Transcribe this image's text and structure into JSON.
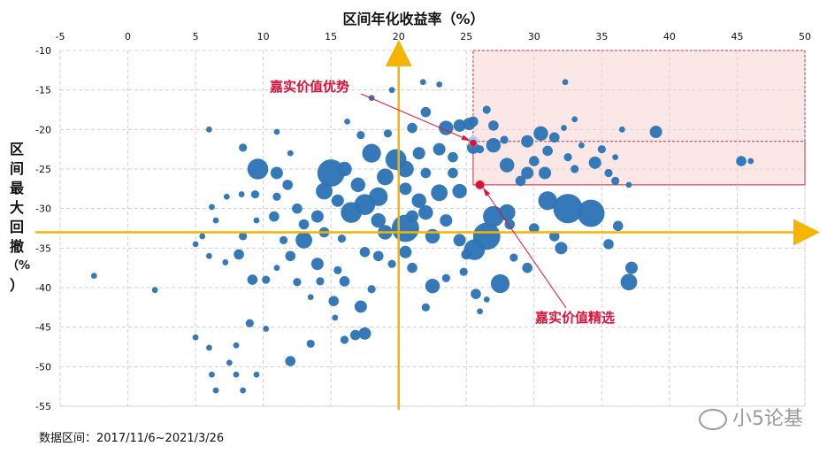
{
  "chart_data": {
    "type": "scatter",
    "title": "区间年化收益率（%）",
    "ylabel": [
      "区",
      "间",
      "最",
      "大",
      "回",
      "撤",
      "（%",
      "）"
    ],
    "xlim": [
      -5,
      50
    ],
    "ylim": [
      -55,
      -10
    ],
    "xticks": [
      -5,
      0,
      5,
      10,
      15,
      20,
      25,
      30,
      35,
      40,
      45,
      50
    ],
    "yticks": [
      -10,
      -15,
      -20,
      -25,
      -30,
      -35,
      -40,
      -45,
      -50,
      -55
    ],
    "grid": "dashed",
    "crosshair": {
      "x": 20,
      "y": -33
    },
    "highlight_region": {
      "x": [
        25.5,
        50
      ],
      "y": [
        -27,
        -10
      ]
    },
    "highlight_subregion": {
      "x": [
        25.5,
        50
      ],
      "y": [
        -27,
        -21.5
      ]
    },
    "bubble_color": "#2e75b6",
    "annotations": [
      {
        "label": "嘉实价值优势",
        "x": 25.5,
        "y": -21.5,
        "color": "#e0123a"
      },
      {
        "label": "嘉实价值精选",
        "x": 26,
        "y": -27,
        "color": "#e0123a"
      }
    ],
    "points": [
      [
        -2.5,
        -38.5,
        1
      ],
      [
        2,
        -40.3,
        1
      ],
      [
        5,
        -46.3,
        1
      ],
      [
        6,
        -47.6,
        1
      ],
      [
        6.5,
        -53,
        1
      ],
      [
        6.2,
        -51,
        1
      ],
      [
        7.5,
        -49.5,
        1
      ],
      [
        8,
        -51,
        1
      ],
      [
        8.5,
        -53,
        1
      ],
      [
        9.5,
        -51,
        1
      ],
      [
        8,
        -47.3,
        1
      ],
      [
        9,
        -44.5,
        1.5
      ],
      [
        10.2,
        -45.2,
        1
      ],
      [
        10.2,
        -39,
        1.5
      ],
      [
        9.2,
        -39,
        2
      ],
      [
        8.2,
        -35.8,
        2
      ],
      [
        7.2,
        -36.8,
        1
      ],
      [
        6,
        -36,
        1
      ],
      [
        5.5,
        -33.5,
        1
      ],
      [
        5,
        -34.5,
        1
      ],
      [
        6.5,
        -31.5,
        1
      ],
      [
        6.2,
        -29.8,
        1
      ],
      [
        7.3,
        -28.5,
        1
      ],
      [
        8.4,
        -28.2,
        1
      ],
      [
        8.5,
        -33.5,
        1.5
      ],
      [
        9.5,
        -31.5,
        1
      ],
      [
        9.6,
        -25,
        4.5
      ],
      [
        9.4,
        -28.2,
        1.5
      ],
      [
        11,
        -25.5,
        2.5
      ],
      [
        11,
        -28.5,
        1.5
      ],
      [
        11.8,
        -27,
        2
      ],
      [
        8.5,
        -22.3,
        1.5
      ],
      [
        6,
        -20,
        1
      ],
      [
        11,
        -20.3,
        1
      ],
      [
        12,
        -23,
        1
      ],
      [
        12.5,
        -30,
        2
      ],
      [
        10.8,
        -31,
        2
      ],
      [
        11.5,
        -34,
        1.5
      ],
      [
        12,
        -36,
        2
      ],
      [
        11,
        -37.5,
        1
      ],
      [
        12.5,
        -39.3,
        1.5
      ],
      [
        14.2,
        -39.2,
        1.5
      ],
      [
        13.5,
        -41.2,
        1
      ],
      [
        15.2,
        -41.7,
        2
      ],
      [
        12,
        -49.3,
        2
      ],
      [
        13.5,
        -47.1,
        1.5
      ],
      [
        15.3,
        -43.8,
        1
      ],
      [
        16,
        -46.6,
        1.5
      ],
      [
        16.8,
        -46,
        2
      ],
      [
        17.5,
        -45.8,
        2.5
      ],
      [
        17.2,
        -42.4,
        2.5
      ],
      [
        18,
        -40.2,
        1.5
      ],
      [
        16,
        -39.2,
        2
      ],
      [
        15.5,
        -37.8,
        1.5
      ],
      [
        14,
        -37,
        2.5
      ],
      [
        13,
        -34,
        3.5
      ],
      [
        14.5,
        -33,
        2
      ],
      [
        15.8,
        -33.8,
        1.5
      ],
      [
        17.5,
        -35.5,
        2
      ],
      [
        18.5,
        -36,
        2
      ],
      [
        19.5,
        -37,
        1.5
      ],
      [
        20.5,
        -35.5,
        2.5
      ],
      [
        21,
        -37.5,
        2
      ],
      [
        22.5,
        -39.8,
        3
      ],
      [
        22,
        -42.5,
        1.5
      ],
      [
        23.5,
        -38.8,
        1.5
      ],
      [
        24.8,
        -38,
        1.5
      ],
      [
        25,
        -35.8,
        2
      ],
      [
        24.5,
        -34,
        2.5
      ],
      [
        25.6,
        -35.2,
        4.5
      ],
      [
        26.5,
        -33.5,
        6
      ],
      [
        27,
        -31,
        4.5
      ],
      [
        28,
        -30.5,
        3.5
      ],
      [
        28.2,
        -32,
        2
      ],
      [
        25.7,
        -40.8,
        2
      ],
      [
        26.5,
        -41.5,
        1
      ],
      [
        26,
        -43,
        1
      ],
      [
        27.5,
        -39.5,
        4
      ],
      [
        29.5,
        -37.5,
        2
      ],
      [
        28.5,
        -36.2,
        1.5
      ],
      [
        31.5,
        -33.5,
        2
      ],
      [
        32,
        -35,
        2.5
      ],
      [
        30,
        -32.5,
        2
      ],
      [
        31,
        -29,
        4
      ],
      [
        32.5,
        -30,
        6.5
      ],
      [
        34.2,
        -30.6,
        6
      ],
      [
        35.5,
        -34.5,
        2
      ],
      [
        36.2,
        -32.2,
        2
      ],
      [
        37.2,
        -37.5,
        2.5
      ],
      [
        37,
        -39.3,
        3.5
      ],
      [
        18,
        -23,
        4
      ],
      [
        19.8,
        -23.8,
        4.5
      ],
      [
        20.5,
        -25,
        3.5
      ],
      [
        21.5,
        -23,
        2.5
      ],
      [
        23,
        -22.5,
        2.5
      ],
      [
        22,
        -25.5,
        2
      ],
      [
        24,
        -25.5,
        2
      ],
      [
        23,
        -28,
        3.5
      ],
      [
        24.5,
        -27.8,
        3
      ],
      [
        22,
        -30.5,
        3
      ],
      [
        20.5,
        -32.5,
        6
      ],
      [
        19,
        -33,
        3
      ],
      [
        18.5,
        -31.5,
        3
      ],
      [
        17.5,
        -29.5,
        4.5
      ],
      [
        17,
        -27,
        3
      ],
      [
        16,
        -25,
        3
      ],
      [
        15,
        -25.5,
        6
      ],
      [
        14.5,
        -27.8,
        3.5
      ],
      [
        15.5,
        -29,
        2.5
      ],
      [
        16.5,
        -30.5,
        4.5
      ],
      [
        14,
        -31,
        2.5
      ],
      [
        13,
        -32,
        2
      ],
      [
        18.5,
        -28.5,
        4
      ],
      [
        19,
        -26,
        3.5
      ],
      [
        20.5,
        -27.5,
        2.5
      ],
      [
        21.5,
        -29,
        3
      ],
      [
        23.5,
        -31.5,
        2.5
      ],
      [
        22.5,
        -33.5,
        3
      ],
      [
        21,
        -31,
        2.5
      ],
      [
        24,
        -23.5,
        2
      ],
      [
        23.5,
        -19.8,
        3
      ],
      [
        24.5,
        -19.5,
        2.5
      ],
      [
        25.2,
        -19.3,
        2.5
      ],
      [
        22,
        -17.8,
        2
      ],
      [
        21,
        -19.8,
        2
      ],
      [
        19.2,
        -20.5,
        1.5
      ],
      [
        17.2,
        -20.7,
        1.5
      ],
      [
        16.2,
        -19,
        1
      ],
      [
        18,
        -16,
        1
      ],
      [
        19.5,
        -15,
        1
      ],
      [
        21.8,
        -14,
        1
      ],
      [
        23,
        -14.3,
        1
      ],
      [
        25.5,
        -22.3,
        2.5
      ],
      [
        26,
        -22.5,
        1.5
      ],
      [
        27,
        -22,
        3
      ],
      [
        28,
        -24.5,
        3
      ],
      [
        29,
        -26.5,
        2
      ],
      [
        29.5,
        -25.5,
        2.5
      ],
      [
        30.5,
        -20.5,
        3
      ],
      [
        30.8,
        -25.5,
        2.5
      ],
      [
        31.5,
        -21,
        2
      ],
      [
        32.2,
        -19.8,
        1
      ],
      [
        32.5,
        -23.5,
        1.5
      ],
      [
        33,
        -18.7,
        1
      ],
      [
        34.5,
        -24.2,
        2.5
      ],
      [
        35.5,
        -25.5,
        1.5
      ],
      [
        36,
        -26.5,
        1.5
      ],
      [
        36.5,
        -20,
        1
      ],
      [
        37,
        -27,
        1
      ],
      [
        39,
        -20.3,
        2.5
      ],
      [
        45.3,
        -24,
        2
      ],
      [
        46,
        -24,
        1
      ],
      [
        32.3,
        -14,
        1
      ],
      [
        27.8,
        -21.3,
        1.5
      ],
      [
        27,
        -19.5,
        2
      ],
      [
        25.5,
        -19,
        2
      ],
      [
        26.5,
        -17.5,
        1.5
      ],
      [
        29.5,
        -21.5,
        2.5
      ],
      [
        31,
        -22.7,
        2
      ],
      [
        30,
        -24,
        2
      ],
      [
        33.5,
        -22,
        1
      ],
      [
        35,
        -22.5,
        1.5
      ],
      [
        36,
        -23.5,
        1
      ],
      [
        33,
        -25,
        1.5
      ]
    ]
  },
  "footnote": "数据区间：2017/11/6~2021/3/26",
  "watermark": "小5论基"
}
